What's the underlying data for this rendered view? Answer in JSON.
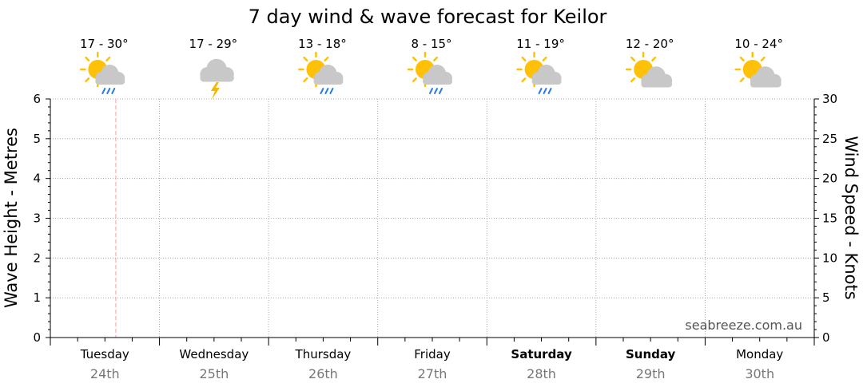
{
  "chart_data": {
    "type": "line",
    "title": "7 day wind & wave forecast for Keilor",
    "ylabel_left": "Wave Height - Metres",
    "ylabel_right": "Wind Speed - Knots",
    "ylim_left": [
      0,
      6
    ],
    "ylim_right": [
      0,
      30
    ],
    "yticks_left": [
      "0",
      "1",
      "2",
      "3",
      "4",
      "5",
      "6"
    ],
    "yticks_right": [
      "0",
      "5",
      "10",
      "15",
      "20",
      "25",
      "30"
    ],
    "grid": true,
    "current_time_marker_day": 0,
    "days": [
      {
        "name": "Tuesday",
        "date": "24th",
        "temp": "17 - 30°",
        "icon": "sun-cloud-rain-icon",
        "bold": false
      },
      {
        "name": "Wednesday",
        "date": "25th",
        "temp": "17 - 29°",
        "icon": "storm-cloud-icon",
        "bold": false
      },
      {
        "name": "Thursday",
        "date": "26th",
        "temp": "13 - 18°",
        "icon": "sun-cloud-rain-icon",
        "bold": false
      },
      {
        "name": "Friday",
        "date": "27th",
        "temp": "8 - 15°",
        "icon": "sun-cloud-rain-icon",
        "bold": false
      },
      {
        "name": "Saturday",
        "date": "28th",
        "temp": "11 - 19°",
        "icon": "sun-cloud-rain-icon",
        "bold": true
      },
      {
        "name": "Sunday",
        "date": "29th",
        "temp": "12 - 20°",
        "icon": "partly-cloudy-icon",
        "bold": true
      },
      {
        "name": "Monday",
        "date": "30th",
        "temp": "10 - 24°",
        "icon": "partly-cloudy-icon",
        "bold": false
      }
    ],
    "series": []
  },
  "watermark": "seabreeze.com.au",
  "colors": {
    "grid": "#999999",
    "marker": "#f4a0a0",
    "sun": "#ffc107",
    "cloud": "#c8c8c8",
    "rain": "#2a7de1",
    "bolt": "#f5b800"
  }
}
